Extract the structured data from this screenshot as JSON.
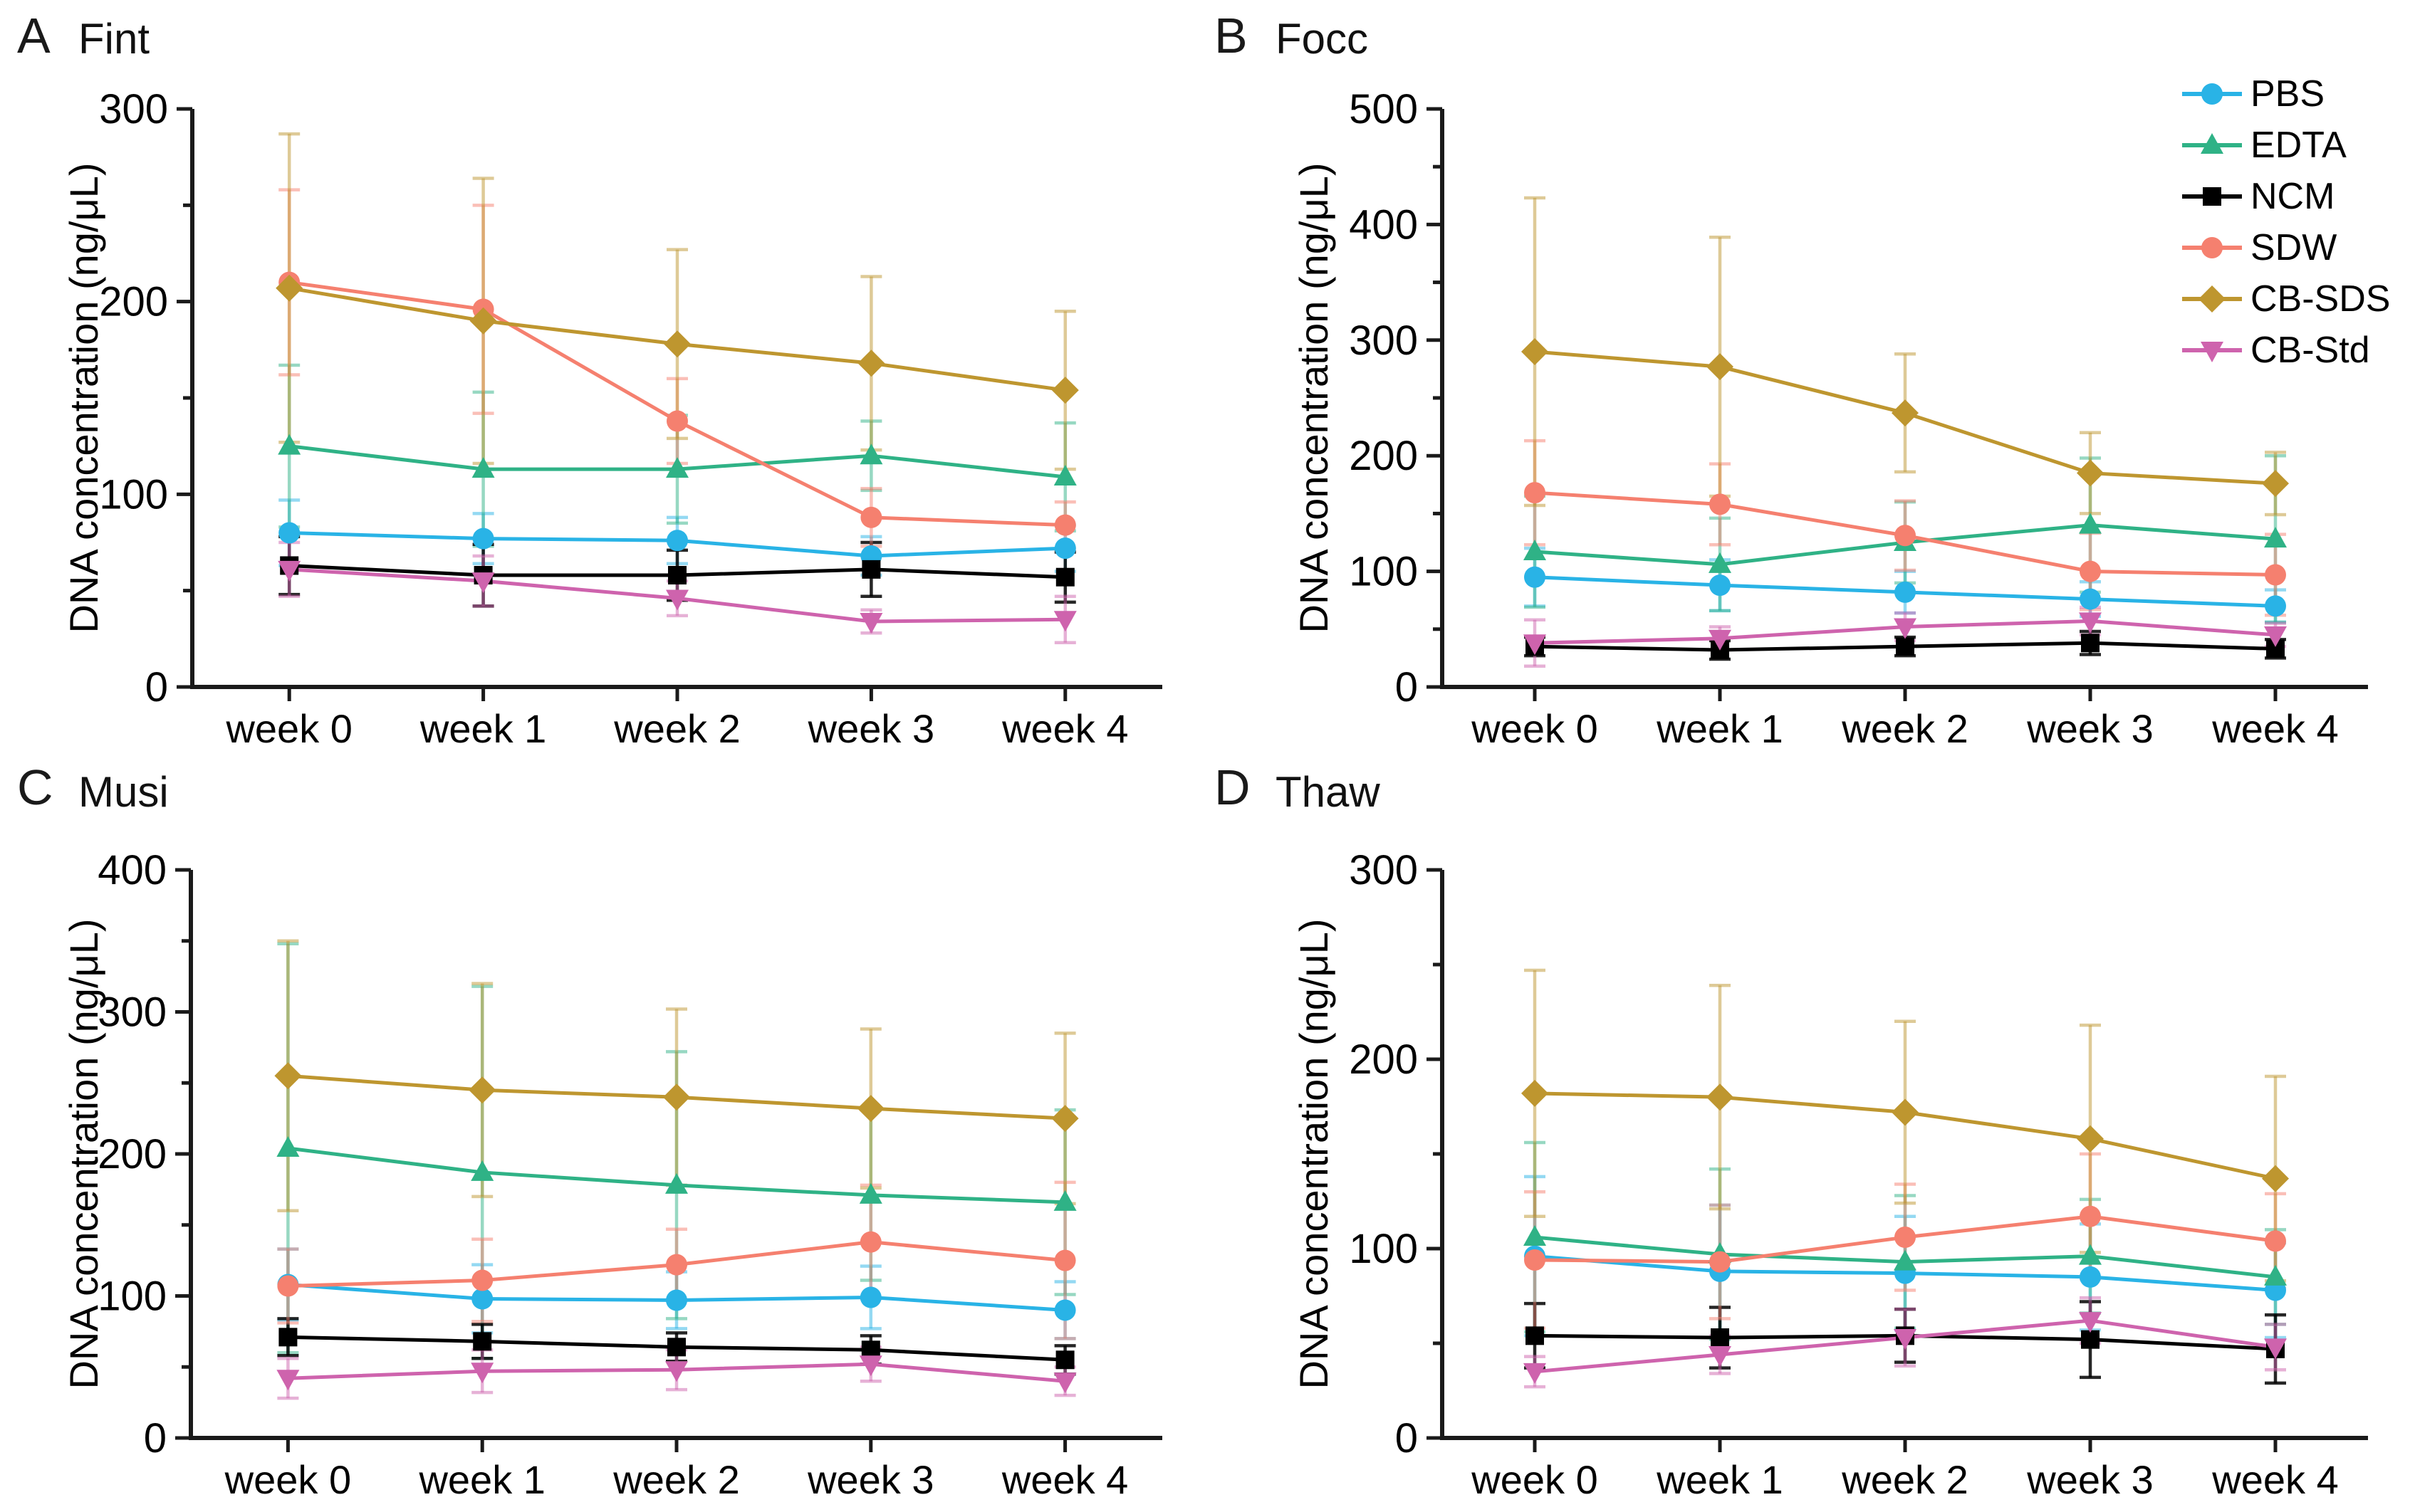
{
  "figure": {
    "y_axis_label": "DNA concentration (ng/μL)",
    "x_categories": [
      "week 0",
      "week 1",
      "week 2",
      "week 3",
      "week 4"
    ],
    "series_styles": [
      {
        "name": "PBS",
        "color": "#29B3E6",
        "marker": "circle"
      },
      {
        "name": "EDTA",
        "color": "#2FB286",
        "marker": "triangle-up"
      },
      {
        "name": "NCM",
        "color": "#000000",
        "marker": "square"
      },
      {
        "name": "SDW",
        "color": "#F5806F",
        "marker": "circle"
      },
      {
        "name": "CB-SDS",
        "color": "#BE962F",
        "marker": "diamond"
      },
      {
        "name": "CB-Std",
        "color": "#CE63AD",
        "marker": "triangle-down"
      }
    ]
  },
  "legend": {
    "entries": [
      "PBS",
      "EDTA",
      "NCM",
      "SDW",
      "CB-SDS",
      "CB-Std"
    ]
  },
  "chart_data": [
    {
      "type": "line",
      "panel_label": "A",
      "title": "Fint",
      "xlabel": "",
      "ylabel": "DNA concentration (ng/μL)",
      "x_categories": [
        "week 0",
        "week 1",
        "week 2",
        "week 3",
        "week 4"
      ],
      "ylim": [
        0,
        300
      ],
      "ytick_major": 100,
      "ytick_minor": 50,
      "grid": false,
      "series": [
        {
          "name": "PBS",
          "values": [
            80,
            77,
            76,
            68,
            72
          ],
          "sd": [
            17,
            13,
            12,
            10,
            12
          ]
        },
        {
          "name": "EDTA",
          "values": [
            125,
            113,
            113,
            120,
            109
          ],
          "sd": [
            42,
            40,
            28,
            18,
            28
          ]
        },
        {
          "name": "NCM",
          "values": [
            63,
            58,
            58,
            61,
            57
          ],
          "sd": [
            15,
            16,
            13,
            14,
            13
          ]
        },
        {
          "name": "SDW",
          "values": [
            210,
            196,
            138,
            88,
            84
          ],
          "sd": [
            48,
            54,
            22,
            15,
            12
          ]
        },
        {
          "name": "CB-SDS",
          "values": [
            207,
            190,
            178,
            168,
            154
          ],
          "sd": [
            80,
            74,
            49,
            45,
            41
          ]
        },
        {
          "name": "CB-Std",
          "values": [
            61,
            55,
            46,
            34,
            35
          ],
          "sd": [
            14,
            13,
            9,
            6,
            12
          ]
        }
      ]
    },
    {
      "type": "line",
      "panel_label": "B",
      "title": "Focc",
      "xlabel": "",
      "ylabel": "DNA concentration (ng/μL)",
      "x_categories": [
        "week 0",
        "week 1",
        "week 2",
        "week 3",
        "week 4"
      ],
      "ylim": [
        0,
        500
      ],
      "ytick_major": 100,
      "ytick_minor": 50,
      "grid": false,
      "series": [
        {
          "name": "PBS",
          "values": [
            95,
            88,
            82,
            76,
            70
          ],
          "sd": [
            25,
            22,
            18,
            15,
            14
          ]
        },
        {
          "name": "EDTA",
          "values": [
            117,
            106,
            125,
            140,
            128
          ],
          "sd": [
            48,
            40,
            35,
            58,
            72
          ]
        },
        {
          "name": "NCM",
          "values": [
            35,
            32,
            35,
            38,
            33
          ],
          "sd": [
            8,
            8,
            8,
            10,
            8
          ]
        },
        {
          "name": "SDW",
          "values": [
            168,
            158,
            131,
            100,
            97
          ],
          "sd": [
            45,
            35,
            30,
            33,
            35
          ]
        },
        {
          "name": "CB-SDS",
          "values": [
            290,
            277,
            237,
            185,
            176
          ],
          "sd": [
            133,
            112,
            51,
            35,
            27
          ]
        },
        {
          "name": "CB-Std",
          "values": [
            38,
            42,
            52,
            57,
            45
          ],
          "sd": [
            20,
            10,
            12,
            12,
            10
          ]
        }
      ]
    },
    {
      "type": "line",
      "panel_label": "C",
      "title": "Musi",
      "xlabel": "",
      "ylabel": "DNA concentration (ng/μL)",
      "x_categories": [
        "week 0",
        "week 1",
        "week 2",
        "week 3",
        "week 4"
      ],
      "ylim": [
        0,
        400
      ],
      "ytick_major": 100,
      "ytick_minor": 50,
      "grid": false,
      "series": [
        {
          "name": "PBS",
          "values": [
            108,
            98,
            97,
            99,
            90
          ],
          "sd": [
            25,
            24,
            20,
            22,
            20
          ]
        },
        {
          "name": "EDTA",
          "values": [
            204,
            187,
            178,
            171,
            166
          ],
          "sd": [
            144,
            131,
            94,
            60,
            65
          ]
        },
        {
          "name": "NCM",
          "values": [
            71,
            68,
            64,
            62,
            55
          ],
          "sd": [
            13,
            12,
            10,
            10,
            10
          ]
        },
        {
          "name": "SDW",
          "values": [
            107,
            111,
            122,
            138,
            125
          ],
          "sd": [
            26,
            29,
            25,
            40,
            55
          ]
        },
        {
          "name": "CB-SDS",
          "values": [
            255,
            245,
            240,
            232,
            225
          ],
          "sd": [
            95,
            75,
            62,
            56,
            60
          ]
        },
        {
          "name": "CB-Std",
          "values": [
            42,
            47,
            48,
            52,
            40
          ],
          "sd": [
            14,
            15,
            14,
            12,
            10
          ]
        }
      ]
    },
    {
      "type": "line",
      "panel_label": "D",
      "title": "Thaw",
      "xlabel": "",
      "ylabel": "DNA concentration (ng/μL)",
      "x_categories": [
        "week 0",
        "week 1",
        "week 2",
        "week 3",
        "week 4"
      ],
      "ylim": [
        0,
        300
      ],
      "ytick_major": 100,
      "ytick_minor": 50,
      "grid": false,
      "series": [
        {
          "name": "PBS",
          "values": [
            96,
            88,
            87,
            85,
            78
          ],
          "sd": [
            42,
            35,
            30,
            28,
            25
          ]
        },
        {
          "name": "EDTA",
          "values": [
            106,
            97,
            93,
            96,
            85
          ],
          "sd": [
            50,
            45,
            35,
            30,
            25
          ]
        },
        {
          "name": "NCM",
          "values": [
            54,
            53,
            54,
            52,
            47
          ],
          "sd": [
            17,
            16,
            14,
            20,
            18
          ]
        },
        {
          "name": "SDW",
          "values": [
            94,
            93,
            106,
            117,
            104
          ],
          "sd": [
            36,
            30,
            28,
            33,
            25
          ]
        },
        {
          "name": "CB-SDS",
          "values": [
            182,
            180,
            172,
            158,
            137
          ],
          "sd": [
            65,
            59,
            48,
            60,
            54
          ]
        },
        {
          "name": "CB-Std",
          "values": [
            35,
            44,
            53,
            62,
            48
          ],
          "sd": [
            8,
            10,
            15,
            12,
            12
          ]
        }
      ]
    }
  ]
}
